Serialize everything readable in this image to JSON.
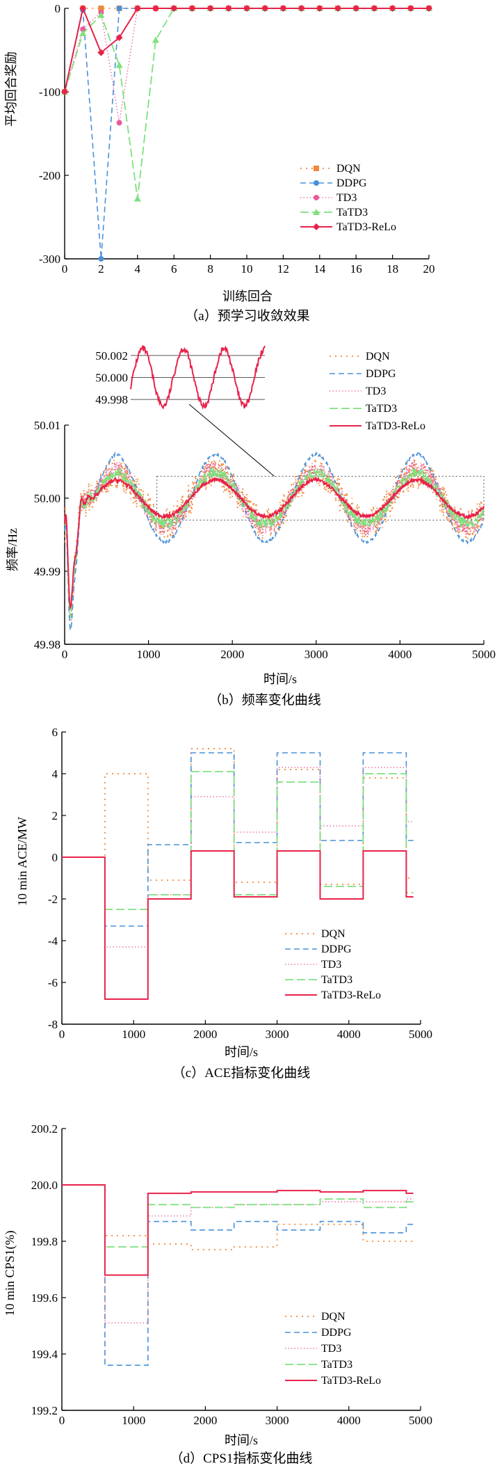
{
  "colors": {
    "DQN": "#f0883a",
    "DDPG": "#4a90d9",
    "TD3": "#e85a9a",
    "TaTD3": "#7ee07e",
    "TaTD3-ReLo": "#e8224a"
  },
  "chart_data": [
    {
      "id": "a",
      "type": "line",
      "caption": "（a）预学习收敛效果",
      "xlabel": "训练回合",
      "ylabel": "平均回合奖励",
      "xlim": [
        0,
        20
      ],
      "ylim": [
        -300,
        0
      ],
      "xticks": [
        0,
        2,
        4,
        6,
        8,
        10,
        12,
        14,
        16,
        18,
        20
      ],
      "yticks": [
        0,
        -100,
        -200,
        -300
      ],
      "legend": [
        "DQN",
        "DDPG",
        "TD3",
        "TaTD3",
        "TaTD3-ReLo"
      ],
      "series": [
        {
          "name": "DQN",
          "x": [
            0,
            1,
            2,
            3,
            4,
            5,
            6,
            7,
            8,
            9,
            10,
            11,
            12,
            13,
            14,
            15,
            16,
            17,
            18,
            19,
            20
          ],
          "y": [
            -100,
            0,
            0,
            0,
            0,
            0,
            0,
            0,
            0,
            0,
            0,
            0,
            0,
            0,
            0,
            0,
            0,
            0,
            0,
            0,
            0
          ]
        },
        {
          "name": "DDPG",
          "x": [
            0,
            1,
            2,
            3,
            4,
            5,
            6,
            7,
            8,
            9,
            10,
            11,
            12,
            13,
            14,
            15,
            16,
            17,
            18,
            19,
            20
          ],
          "y": [
            -100,
            -2,
            -300,
            0,
            0,
            0,
            0,
            0,
            0,
            0,
            0,
            0,
            0,
            0,
            0,
            0,
            0,
            0,
            0,
            0,
            0
          ]
        },
        {
          "name": "TD3",
          "x": [
            0,
            1,
            2,
            3,
            4,
            5,
            6,
            7,
            8,
            9,
            10,
            11,
            12,
            13,
            14,
            15,
            16,
            17,
            18,
            19,
            20
          ],
          "y": [
            -100,
            -25,
            -5,
            -137,
            0,
            0,
            0,
            0,
            0,
            0,
            0,
            0,
            0,
            0,
            0,
            0,
            0,
            0,
            0,
            0,
            0
          ]
        },
        {
          "name": "TaTD3",
          "x": [
            0,
            1,
            2,
            3,
            4,
            5,
            6,
            7,
            8,
            9,
            10,
            11,
            12,
            13,
            14,
            15,
            16,
            17,
            18,
            19,
            20
          ],
          "y": [
            -100,
            -30,
            -8,
            -68,
            -228,
            -38,
            0,
            0,
            0,
            0,
            0,
            0,
            0,
            0,
            0,
            0,
            0,
            0,
            0,
            0,
            0
          ]
        },
        {
          "name": "TaTD3-ReLo",
          "x": [
            0,
            1,
            2,
            3,
            4,
            5,
            6,
            7,
            8,
            9,
            10,
            11,
            12,
            13,
            14,
            15,
            16,
            17,
            18,
            19,
            20
          ],
          "y": [
            -100,
            0,
            -53,
            -35,
            0,
            0,
            0,
            0,
            0,
            0,
            0,
            0,
            0,
            0,
            0,
            0,
            0,
            0,
            0,
            0,
            0
          ]
        }
      ]
    },
    {
      "id": "b",
      "type": "line",
      "caption": "（b）频率变化曲线",
      "xlabel": "时间/s",
      "ylabel": "频率/Hz",
      "xlim": [
        0,
        5000
      ],
      "ylim": [
        49.98,
        50.01
      ],
      "xticks": [
        0,
        1000,
        2000,
        3000,
        4000,
        5000
      ],
      "yticks": [
        49.98,
        49.99,
        50.0,
        50.01
      ],
      "ytick_labels": [
        "49.98",
        "49.99",
        "50.00",
        "50.01"
      ],
      "inset_ticks": [
        "50.002",
        "50.000",
        "49.998"
      ],
      "inset_range": [
        49.997,
        50.003
      ],
      "legend": [
        "DQN",
        "DDPG",
        "TD3",
        "TaTD3",
        "TaTD3-ReLo"
      ],
      "series": [
        {
          "name": "DQN",
          "amplitude": 0.0035,
          "noise": 0.0045,
          "baseline": 50.0
        },
        {
          "name": "DDPG",
          "amplitude": 0.006,
          "noise": 0.0004,
          "baseline": 50.0
        },
        {
          "name": "TD3",
          "amplitude": 0.004,
          "noise": 0.0025,
          "baseline": 50.0
        },
        {
          "name": "TaTD3",
          "amplitude": 0.0035,
          "noise": 0.0015,
          "baseline": 50.0
        },
        {
          "name": "TaTD3-ReLo",
          "amplitude": 0.0025,
          "noise": 0.0005,
          "baseline": 50.0
        }
      ],
      "period_s": 1200,
      "initial_dip": {
        "time_s": 80,
        "min_values": [
          49.986,
          49.984,
          49.987,
          49.986,
          49.987
        ]
      }
    },
    {
      "id": "c",
      "type": "line",
      "caption": "（c）ACE指标变化曲线",
      "xlabel": "时间/s",
      "ylabel": "10 min ACE/MW",
      "xlim": [
        0,
        5000
      ],
      "ylim": [
        -8,
        6
      ],
      "xticks": [
        0,
        1000,
        2000,
        3000,
        4000,
        5000
      ],
      "yticks": [
        -8,
        -6,
        -4,
        -2,
        0,
        2,
        4,
        6
      ],
      "legend": [
        "DQN",
        "DDPG",
        "TD3",
        "TaTD3",
        "TaTD3-ReLo"
      ],
      "step_edges": [
        0,
        600,
        1200,
        1800,
        2400,
        3000,
        3600,
        4200,
        4800,
        4900
      ],
      "series": [
        {
          "name": "DQN",
          "values": [
            0,
            4.0,
            -1.1,
            5.2,
            -1.2,
            4.2,
            -1.3,
            3.8,
            -1.0
          ]
        },
        {
          "name": "DDPG",
          "values": [
            0,
            -3.3,
            0.6,
            5.0,
            0.7,
            5.0,
            0.8,
            5.0,
            0.8
          ]
        },
        {
          "name": "TD3",
          "values": [
            0,
            -4.3,
            -1.8,
            2.9,
            1.2,
            4.3,
            1.5,
            4.3,
            1.7
          ]
        },
        {
          "name": "TaTD3",
          "values": [
            0,
            -2.5,
            -1.8,
            4.1,
            -1.8,
            3.6,
            -1.4,
            4.0,
            -1.7
          ]
        },
        {
          "name": "TaTD3-ReLo",
          "values": [
            0,
            -6.8,
            -2.0,
            0.3,
            -1.9,
            0.3,
            -2.0,
            0.3,
            -1.9
          ]
        }
      ]
    },
    {
      "id": "d",
      "type": "line",
      "caption": "（d）CPS1指标变化曲线",
      "xlabel": "时间/s",
      "ylabel": "10 min CPS1(%)",
      "xlim": [
        0,
        5000
      ],
      "ylim": [
        199.2,
        200.2
      ],
      "xticks": [
        0,
        1000,
        2000,
        3000,
        4000,
        5000
      ],
      "yticks": [
        199.2,
        199.4,
        199.6,
        199.8,
        200.0,
        200.2
      ],
      "ytick_labels": [
        "199.2",
        "199.4",
        "199.6",
        "199.8",
        "200.0",
        "200.2"
      ],
      "legend": [
        "DQN",
        "DDPG",
        "TD3",
        "TaTD3",
        "TaTD3-ReLo"
      ],
      "step_edges": [
        0,
        600,
        1200,
        1800,
        2400,
        3000,
        3600,
        4200,
        4800,
        4900
      ],
      "series": [
        {
          "name": "DQN",
          "values": [
            200.0,
            199.82,
            199.79,
            199.77,
            199.78,
            199.86,
            199.86,
            199.8,
            199.8
          ]
        },
        {
          "name": "DDPG",
          "values": [
            200.0,
            199.36,
            199.87,
            199.84,
            199.87,
            199.84,
            199.87,
            199.83,
            199.86
          ]
        },
        {
          "name": "TD3",
          "values": [
            200.0,
            199.51,
            199.89,
            199.92,
            199.93,
            199.93,
            199.94,
            199.94,
            199.95
          ]
        },
        {
          "name": "TaTD3",
          "values": [
            200.0,
            199.78,
            199.93,
            199.92,
            199.93,
            199.93,
            199.95,
            199.92,
            199.94
          ]
        },
        {
          "name": "TaTD3-ReLo",
          "values": [
            200.0,
            199.68,
            199.97,
            199.975,
            199.975,
            199.98,
            199.975,
            199.98,
            199.97
          ]
        }
      ]
    }
  ]
}
